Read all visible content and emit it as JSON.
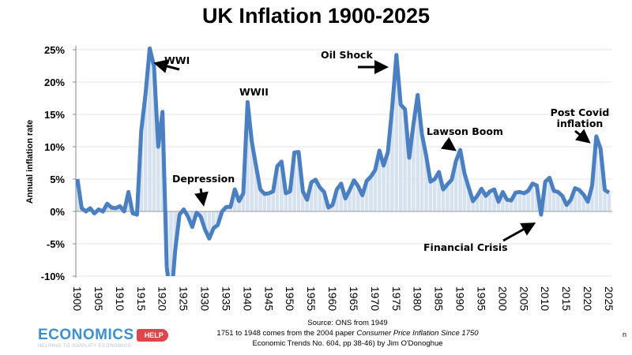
{
  "chart_data": {
    "type": "area",
    "title": "UK Inflation 1900-2025",
    "ylabel": "Annual inflation rate",
    "xlabel": "",
    "xlim": [
      1900,
      2025
    ],
    "ylim": [
      -10,
      25
    ],
    "yticks": [
      25,
      20,
      15,
      10,
      5,
      0,
      -5,
      -10
    ],
    "ytick_labels": [
      "25%",
      "20%",
      "15%",
      "10%",
      "5%",
      "0%",
      "-5%",
      "-10%"
    ],
    "xtick_labels": [
      "1900",
      "1905",
      "1910",
      "1915",
      "1920",
      "1925",
      "1930",
      "1935",
      "1940",
      "1945",
      "1950",
      "1955",
      "1960",
      "1965",
      "1970",
      "1975",
      "1980",
      "1985",
      "1990",
      "1995",
      "2000",
      "2005",
      "2010",
      "2015",
      "2020",
      "2025"
    ],
    "grid": true,
    "legend": "none",
    "line_color": "#4a7fc1",
    "fill_color": "#d6e2f0",
    "x": [
      1900,
      1901,
      1902,
      1903,
      1904,
      1905,
      1906,
      1907,
      1908,
      1909,
      1910,
      1911,
      1912,
      1913,
      1914,
      1915,
      1916,
      1917,
      1918,
      1919,
      1920,
      1921,
      1922,
      1923,
      1924,
      1925,
      1926,
      1927,
      1928,
      1929,
      1930,
      1931,
      1932,
      1933,
      1934,
      1935,
      1936,
      1937,
      1938,
      1939,
      1940,
      1941,
      1942,
      1943,
      1944,
      1945,
      1946,
      1947,
      1948,
      1949,
      1950,
      1951,
      1952,
      1953,
      1954,
      1955,
      1956,
      1957,
      1958,
      1959,
      1960,
      1961,
      1962,
      1963,
      1964,
      1965,
      1966,
      1967,
      1968,
      1969,
      1970,
      1971,
      1972,
      1973,
      1974,
      1975,
      1976,
      1977,
      1978,
      1979,
      1980,
      1981,
      1982,
      1983,
      1984,
      1985,
      1986,
      1987,
      1988,
      1989,
      1990,
      1991,
      1992,
      1993,
      1994,
      1995,
      1996,
      1997,
      1998,
      1999,
      2000,
      2001,
      2002,
      2003,
      2004,
      2005,
      2006,
      2007,
      2008,
      2009,
      2010,
      2011,
      2012,
      2013,
      2014,
      2015,
      2016,
      2017,
      2018,
      2019,
      2020,
      2021,
      2022,
      2023,
      2024,
      2025
    ],
    "values": [
      5.0,
      0.5,
      0.0,
      0.5,
      -0.3,
      0.3,
      0.0,
      1.2,
      0.6,
      0.5,
      0.8,
      0.0,
      3.0,
      -0.3,
      -0.5,
      12.5,
      18.0,
      25.2,
      22.5,
      10.0,
      15.4,
      -8.6,
      -14.0,
      -6.0,
      -0.5,
      0.3,
      -0.8,
      -2.4,
      -0.2,
      -0.8,
      -2.8,
      -4.2,
      -2.6,
      -2.1,
      0.0,
      0.7,
      0.7,
      3.4,
      1.6,
      2.8,
      16.9,
      10.8,
      7.0,
      3.4,
      2.7,
      2.8,
      3.1,
      7.0,
      7.7,
      2.8,
      3.1,
      9.1,
      9.2,
      3.1,
      1.8,
      4.5,
      4.9,
      3.7,
      3.0,
      0.6,
      1.0,
      3.4,
      4.3,
      2.0,
      3.3,
      4.8,
      3.9,
      2.5,
      4.7,
      5.4,
      6.4,
      9.4,
      7.1,
      9.2,
      16.0,
      24.2,
      16.5,
      15.8,
      8.3,
      13.4,
      18.0,
      11.9,
      8.6,
      4.6,
      5.0,
      6.1,
      3.4,
      4.2,
      4.9,
      7.8,
      9.5,
      5.9,
      3.7,
      1.6,
      2.4,
      3.5,
      2.4,
      3.1,
      3.4,
      1.5,
      3.0,
      1.8,
      1.7,
      2.9,
      3.0,
      2.8,
      3.2,
      4.3,
      4.0,
      -0.5,
      4.6,
      5.2,
      3.2,
      3.0,
      2.4,
      1.0,
      1.8,
      3.6,
      3.3,
      2.6,
      1.5,
      4.0,
      11.6,
      9.7,
      3.3,
      2.9
    ],
    "annotations": {
      "wwi": "WWI",
      "wwii": "WWII",
      "depression": "Depression",
      "oil_shock": "Oil Shock",
      "lawson_boom": "Lawson Boom",
      "post_covid_1": "Post Covid",
      "post_covid_2": "inflation",
      "financial_crisis": "Financial Crisis"
    }
  },
  "footer": {
    "logo_main": "ECONOMICS",
    "logo_tag": "HELP",
    "logo_sub": "HELPING TO SIMPLIFY ECONOMICS",
    "source_1": "Source: ONS from 1949",
    "source_2a": "1751 to 1948 comes from the 2004 paper ",
    "source_2b": "Consumer Price Inflation Since 1750",
    "source_3": "Economic Trends No. 604, pp 38-46) by Jim O'Donoghue",
    "edge_text": "n"
  }
}
